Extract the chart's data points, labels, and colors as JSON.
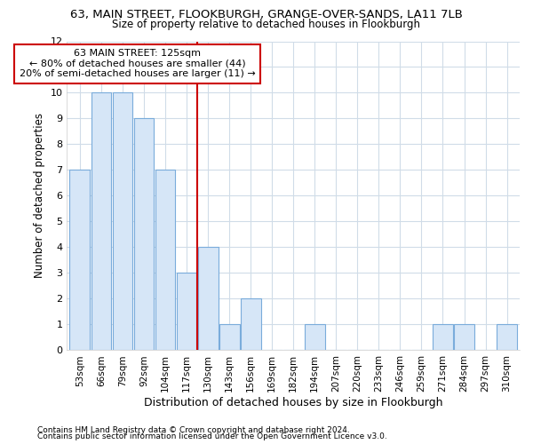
{
  "title": "63, MAIN STREET, FLOOKBURGH, GRANGE-OVER-SANDS, LA11 7LB",
  "subtitle": "Size of property relative to detached houses in Flookburgh",
  "xlabel": "Distribution of detached houses by size in Flookburgh",
  "ylabel": "Number of detached properties",
  "categories": [
    "53sqm",
    "66sqm",
    "79sqm",
    "92sqm",
    "104sqm",
    "117sqm",
    "130sqm",
    "143sqm",
    "156sqm",
    "169sqm",
    "182sqm",
    "194sqm",
    "207sqm",
    "220sqm",
    "233sqm",
    "246sqm",
    "259sqm",
    "271sqm",
    "284sqm",
    "297sqm",
    "310sqm"
  ],
  "values": [
    7,
    10,
    10,
    9,
    7,
    3,
    4,
    1,
    2,
    0,
    0,
    1,
    0,
    0,
    0,
    0,
    0,
    1,
    1,
    0,
    1
  ],
  "bar_color": "#d6e6f7",
  "bar_edgecolor": "#7aacdb",
  "vline_x": 5.5,
  "vline_color": "#cc0000",
  "annotation_line1": "63 MAIN STREET: 125sqm",
  "annotation_line2": "← 80% of detached houses are smaller (44)",
  "annotation_line3": "20% of semi-detached houses are larger (11) →",
  "annotation_box_color": "#cc0000",
  "ylim": [
    0,
    12
  ],
  "yticks": [
    0,
    1,
    2,
    3,
    4,
    5,
    6,
    7,
    8,
    9,
    10,
    11,
    12
  ],
  "footer_line1": "Contains HM Land Registry data © Crown copyright and database right 2024.",
  "footer_line2": "Contains public sector information licensed under the Open Government Licence v3.0.",
  "bg_color": "#ffffff",
  "grid_color": "#d0dce8"
}
